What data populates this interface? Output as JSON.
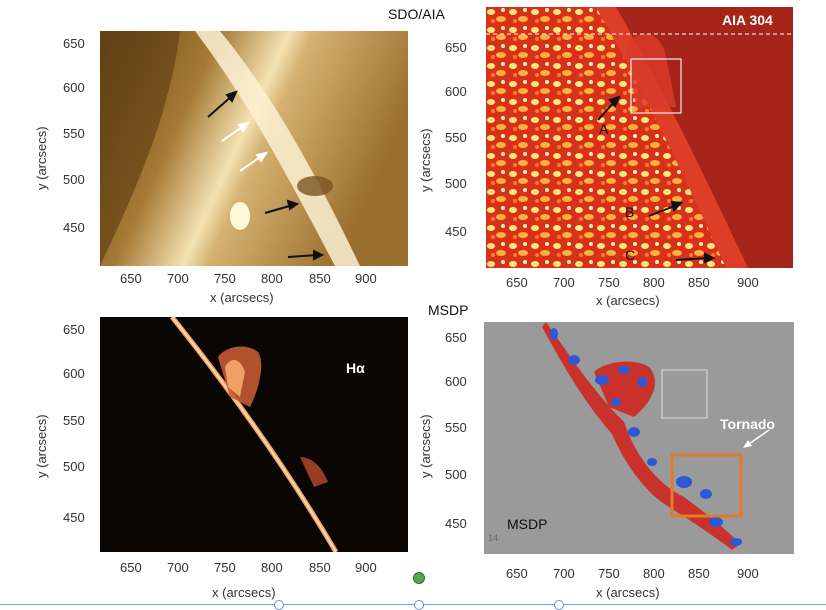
{
  "panels": {
    "top_left": {
      "yticks": [
        "650",
        "600",
        "550",
        "500",
        "450"
      ],
      "xticks": [
        "650",
        "700",
        "750",
        "800",
        "850",
        "900"
      ],
      "ylabel": "y (arcsecs)",
      "xlabel": "x (arcsecs)"
    },
    "top_right": {
      "title": "SDO/AIA",
      "label": "AIA 304",
      "yticks": [
        "650",
        "600",
        "550",
        "500",
        "450"
      ],
      "xticks": [
        "650",
        "700",
        "750",
        "800",
        "850",
        "900"
      ],
      "ylabel": "y (arcsecs)",
      "xlabel": "x (arcsecs)",
      "markers": [
        "A",
        "B",
        "C"
      ]
    },
    "bottom_left": {
      "label": "Hα",
      "yticks": [
        "650",
        "600",
        "550",
        "500",
        "450"
      ],
      "xticks": [
        "650",
        "700",
        "750",
        "800",
        "850",
        "900"
      ],
      "ylabel": "y (arcsecs)",
      "xlabel": "x (arcsecs)"
    },
    "bottom_right": {
      "title": "MSDP",
      "inner_label": "MSDP",
      "annotation": "Tornado",
      "corner_number": "14",
      "yticks": [
        "650",
        "600",
        "550",
        "500",
        "450"
      ],
      "xticks": [
        "650",
        "700",
        "750",
        "800",
        "850",
        "900"
      ],
      "ylabel": "y (arcsecs)",
      "xlabel": "x (arcsecs)"
    }
  },
  "colors": {
    "aia171_dark": "#5a3a10",
    "aia171_light": "#f6e6b8",
    "aia304_red": "#c8231a",
    "aia304_yellow": "#ffe04a",
    "halpha_glow": "#f4a16a",
    "msdp_gray": "#9a9a9a",
    "msdp_red": "#c9322a",
    "msdp_blue": "#2d58d8",
    "tornado_box": "#e07a2c"
  }
}
